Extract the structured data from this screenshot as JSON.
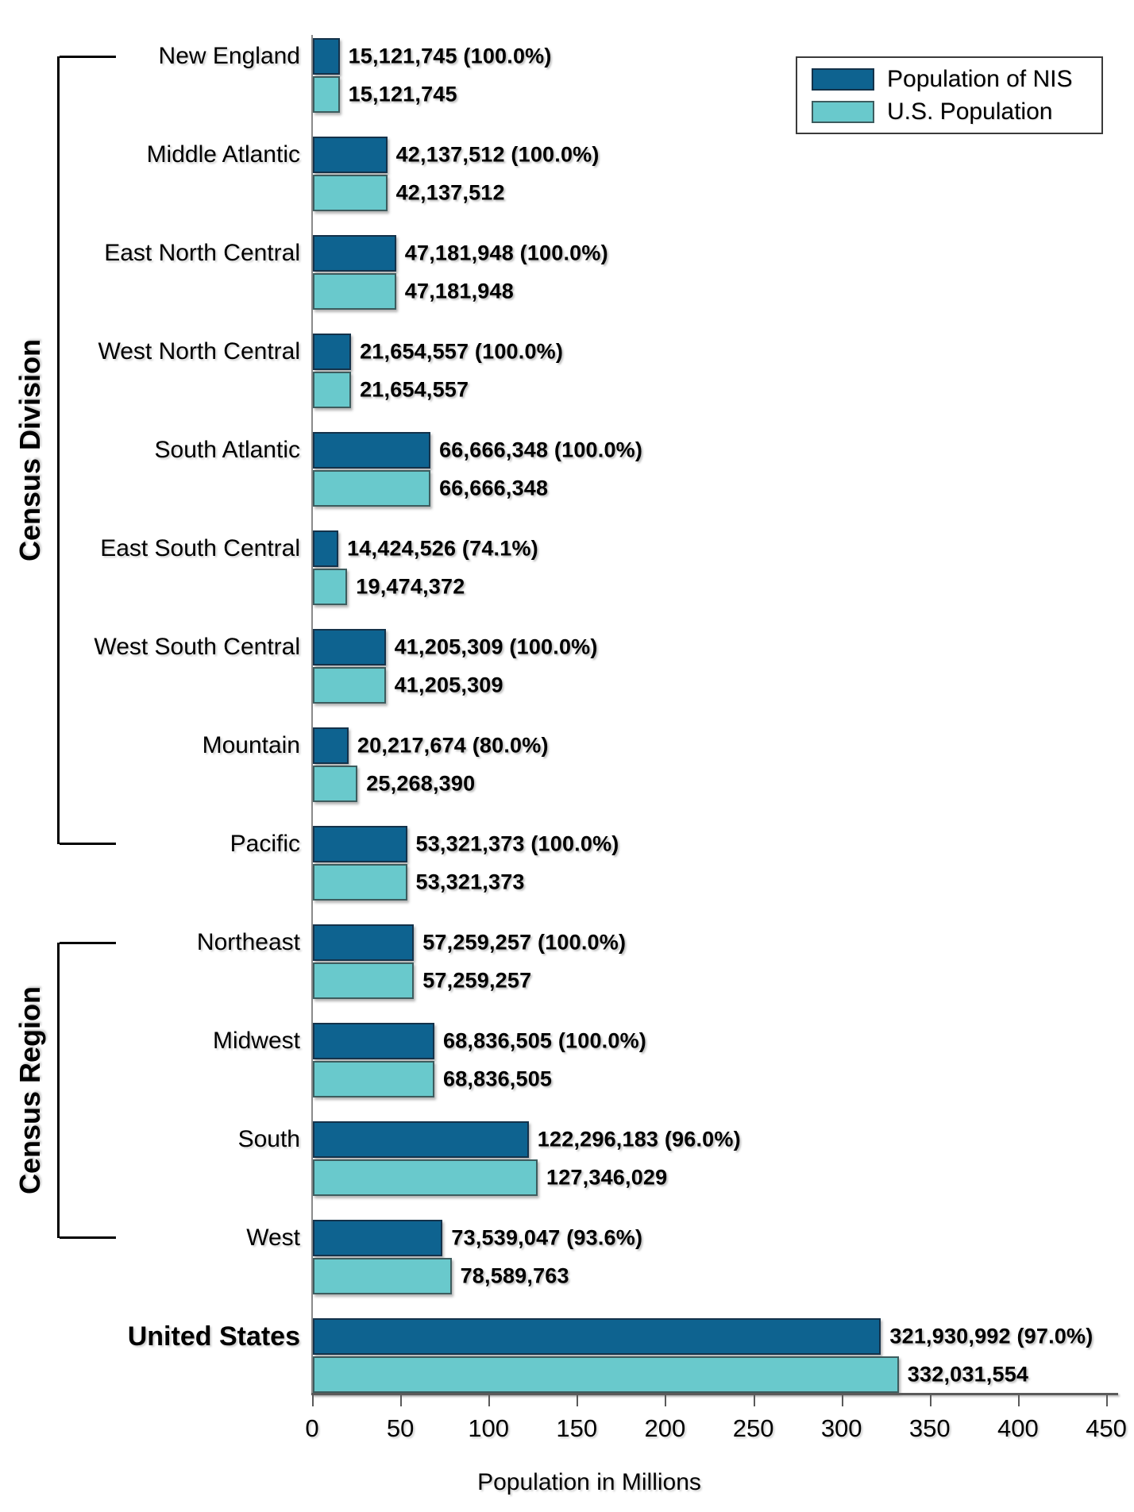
{
  "chart_data": {
    "type": "bar",
    "orientation": "horizontal",
    "xlabel": "Population in Millions",
    "xlim": [
      0,
      450
    ],
    "x_ticks": [
      "0",
      "50",
      "100",
      "150",
      "200",
      "250",
      "300",
      "350",
      "400",
      "450"
    ],
    "grid": false,
    "legend_position": "top-right",
    "group_axis_labels": {
      "division": "Census Division",
      "region": "Census Region"
    },
    "series_legend": {
      "nis": {
        "label": "Population of NIS",
        "color": "#0E6390"
      },
      "us": {
        "label": "U.S. Population",
        "color": "#69C9CC"
      }
    },
    "rows": [
      {
        "category": "New England",
        "group": "Census Division",
        "nis_value": 15121745,
        "nis_label": "15,121,745 (100.0%)",
        "us_value": 15121745,
        "us_label": "15,121,745"
      },
      {
        "category": "Middle Atlantic",
        "group": "Census Division",
        "nis_value": 42137512,
        "nis_label": "42,137,512 (100.0%)",
        "us_value": 42137512,
        "us_label": "42,137,512"
      },
      {
        "category": "East North Central",
        "group": "Census Division",
        "nis_value": 47181948,
        "nis_label": "47,181,948 (100.0%)",
        "us_value": 47181948,
        "us_label": "47,181,948"
      },
      {
        "category": "West North Central",
        "group": "Census Division",
        "nis_value": 21654557,
        "nis_label": "21,654,557 (100.0%)",
        "us_value": 21654557,
        "us_label": "21,654,557"
      },
      {
        "category": "South Atlantic",
        "group": "Census Division",
        "nis_value": 66666348,
        "nis_label": "66,666,348 (100.0%)",
        "us_value": 66666348,
        "us_label": "66,666,348"
      },
      {
        "category": "East South Central",
        "group": "Census Division",
        "nis_value": 14424526,
        "nis_label": "14,424,526 (74.1%)",
        "us_value": 19474372,
        "us_label": "19,474,372"
      },
      {
        "category": "West South Central",
        "group": "Census Division",
        "nis_value": 41205309,
        "nis_label": "41,205,309 (100.0%)",
        "us_value": 41205309,
        "us_label": "41,205,309"
      },
      {
        "category": "Mountain",
        "group": "Census Division",
        "nis_value": 20217674,
        "nis_label": "20,217,674 (80.0%)",
        "us_value": 25268390,
        "us_label": "25,268,390"
      },
      {
        "category": "Pacific",
        "group": "Census Division",
        "nis_value": 53321373,
        "nis_label": "53,321,373 (100.0%)",
        "us_value": 53321373,
        "us_label": "53,321,373"
      },
      {
        "category": "Northeast",
        "group": "Census Region",
        "nis_value": 57259257,
        "nis_label": "57,259,257 (100.0%)",
        "us_value": 57259257,
        "us_label": "57,259,257"
      },
      {
        "category": "Midwest",
        "group": "Census Region",
        "nis_value": 68836505,
        "nis_label": "68,836,505 (100.0%)",
        "us_value": 68836505,
        "us_label": "68,836,505"
      },
      {
        "category": "South",
        "group": "Census Region",
        "nis_value": 122296183,
        "nis_label": "122,296,183 (96.0%)",
        "us_value": 127346029,
        "us_label": "127,346,029"
      },
      {
        "category": "West",
        "group": "Census Region",
        "nis_value": 73539047,
        "nis_label": "73,539,047 (93.6%)",
        "us_value": 78589763,
        "us_label": "78,589,763"
      },
      {
        "category": "United States",
        "group": "",
        "nis_value": 321930992,
        "nis_label": "321,930,992 (97.0%)",
        "us_value": 332031554,
        "us_label": "332,031,554"
      }
    ]
  },
  "colors": {
    "nis_bar": "#0E6390",
    "us_bar": "#69C9CC",
    "axis_line": "#5A5A5A",
    "bracket": "#000000",
    "text": "#000000"
  }
}
